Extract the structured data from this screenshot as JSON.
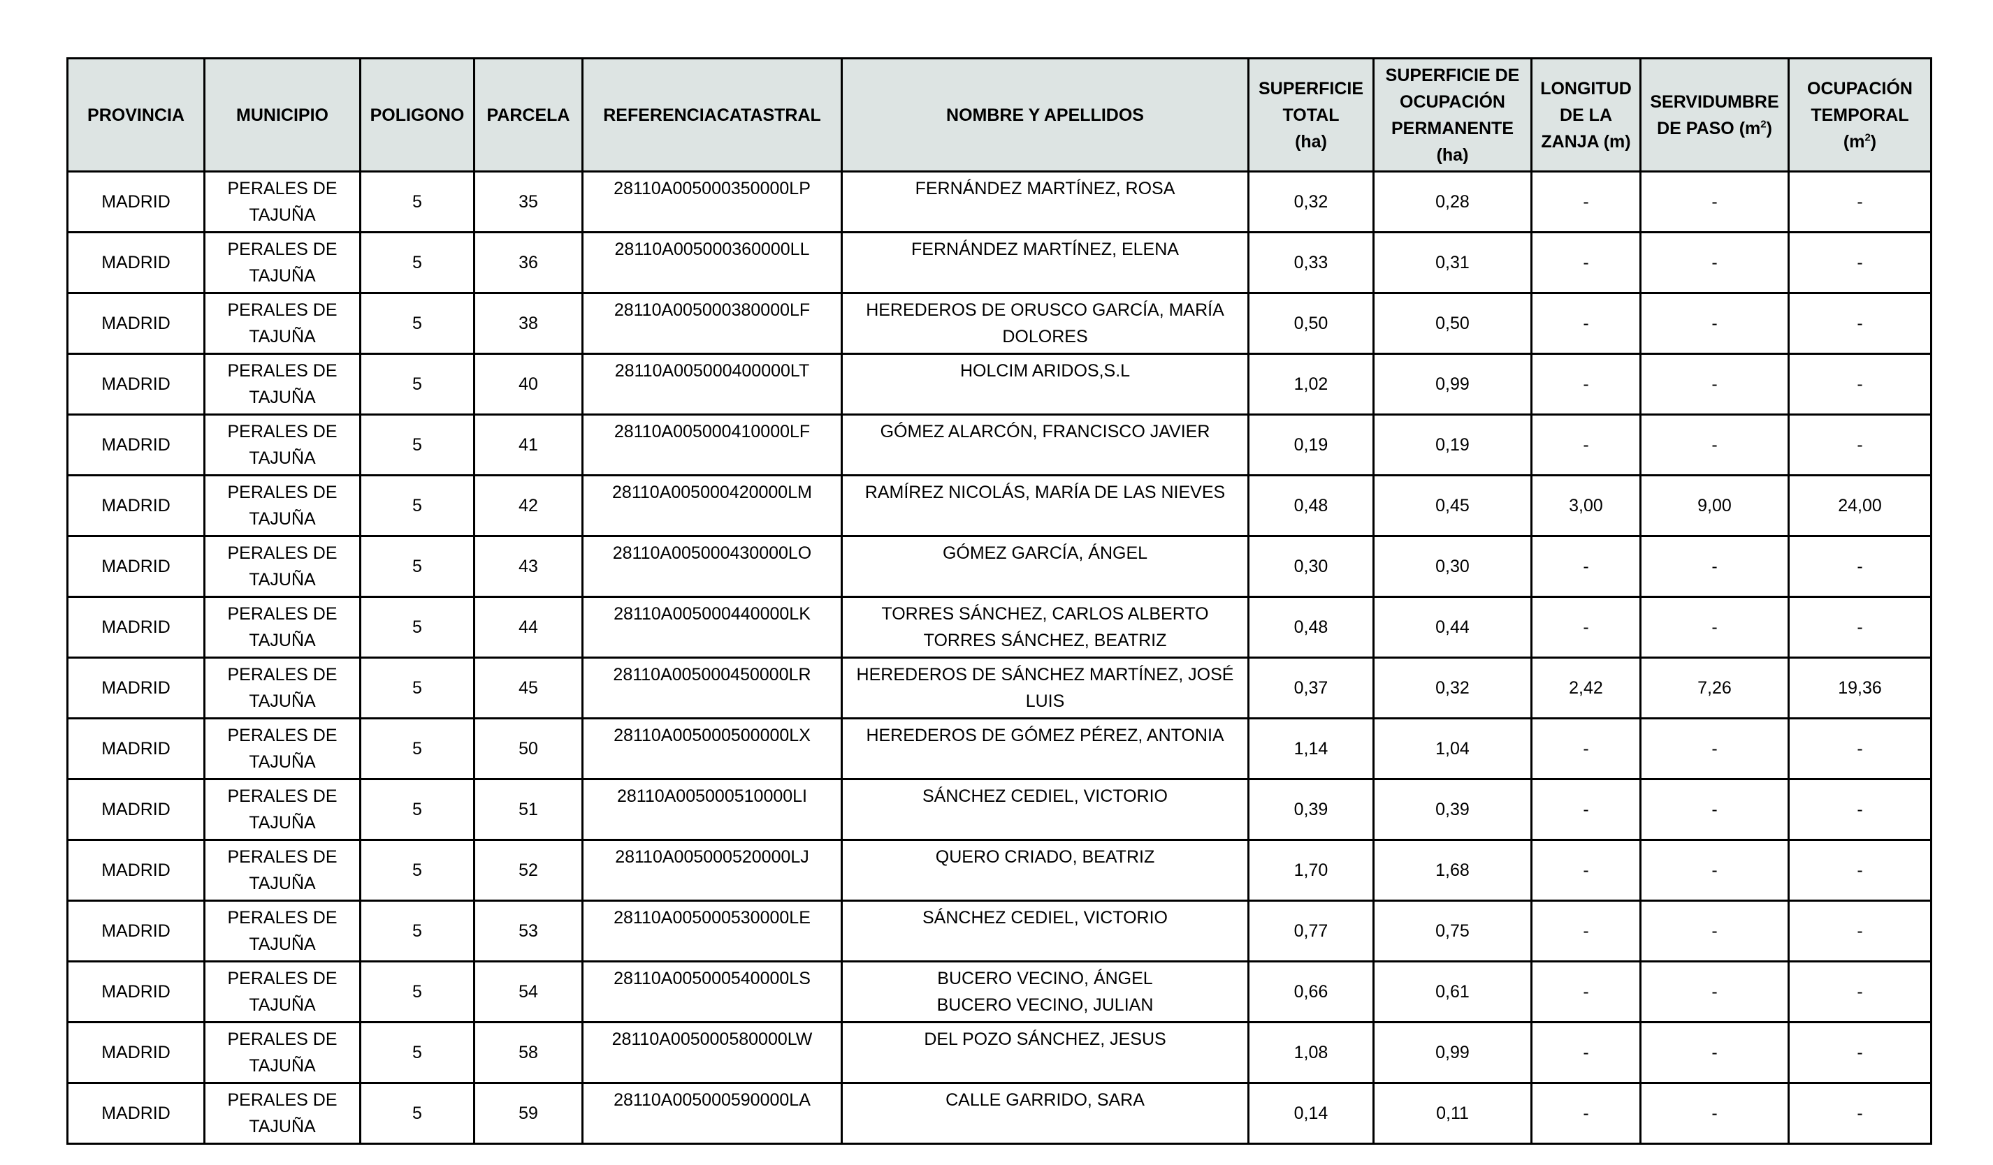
{
  "headers": [
    {
      "label": "PROVINCIA"
    },
    {
      "label": "MUNICIPIO"
    },
    {
      "label": "POLIGONO"
    },
    {
      "label": "PARCELA"
    },
    {
      "label": "REFERENCIACATASTRAL"
    },
    {
      "label": "NOMBRE Y APELLIDOS"
    },
    {
      "label": "SUPERFICIE\nTOTAL\n(ha)"
    },
    {
      "label": "SUPERFICIE DE\nOCUPACIÓN\nPERMANENTE\n(ha)"
    },
    {
      "label": "LONGITUD\nDE LA\nZANJA (m)"
    },
    {
      "label": "SERVIDUMBRE\nDE PASO (m",
      "sup": "2",
      "after": ")"
    },
    {
      "label": "OCUPACIÓN\nTEMPORAL\n(m",
      "sup": "2",
      "after": ")"
    }
  ],
  "rows": [
    [
      "MADRID",
      "PERALES DE TAJUÑA",
      "5",
      "35",
      "28110A005000350000LP",
      "FERNÁNDEZ MARTÍNEZ, ROSA",
      "0,32",
      "0,28",
      "-",
      "-",
      "-"
    ],
    [
      "MADRID",
      "PERALES DE TAJUÑA",
      "5",
      "36",
      "28110A005000360000LL",
      "FERNÁNDEZ MARTÍNEZ, ELENA",
      "0,33",
      "0,31",
      "-",
      "-",
      "-"
    ],
    [
      "MADRID",
      "PERALES DE TAJUÑA",
      "5",
      "38",
      "28110A005000380000LF",
      "HEREDEROS DE ORUSCO GARCÍA, MARÍA DOLORES",
      "0,50",
      "0,50",
      "-",
      "-",
      "-"
    ],
    [
      "MADRID",
      "PERALES DE TAJUÑA",
      "5",
      "40",
      "28110A005000400000LT",
      "HOLCIM ARIDOS,S.L",
      "1,02",
      "0,99",
      "-",
      "-",
      "-"
    ],
    [
      "MADRID",
      "PERALES DE TAJUÑA",
      "5",
      "41",
      "28110A005000410000LF",
      "GÓMEZ ALARCÓN, FRANCISCO JAVIER",
      "0,19",
      "0,19",
      "-",
      "-",
      "-"
    ],
    [
      "MADRID",
      "PERALES DE TAJUÑA",
      "5",
      "42",
      "28110A005000420000LM",
      "RAMÍREZ NICOLÁS, MARÍA DE LAS NIEVES",
      "0,48",
      "0,45",
      "3,00",
      "9,00",
      "24,00"
    ],
    [
      "MADRID",
      "PERALES DE TAJUÑA",
      "5",
      "43",
      "28110A005000430000LO",
      "GÓMEZ GARCÍA, ÁNGEL",
      "0,30",
      "0,30",
      "-",
      "-",
      "-"
    ],
    [
      "MADRID",
      "PERALES DE TAJUÑA",
      "5",
      "44",
      "28110A005000440000LK",
      "TORRES SÁNCHEZ, CARLOS ALBERTO\nTORRES SÁNCHEZ, BEATRIZ",
      "0,48",
      "0,44",
      "-",
      "-",
      "-"
    ],
    [
      "MADRID",
      "PERALES DE TAJUÑA",
      "5",
      "45",
      "28110A005000450000LR",
      "HEREDEROS DE SÁNCHEZ MARTÍNEZ, JOSÉ LUIS",
      "0,37",
      "0,32",
      "2,42",
      "7,26",
      "19,36"
    ],
    [
      "MADRID",
      "PERALES DE TAJUÑA",
      "5",
      "50",
      "28110A005000500000LX",
      "HEREDEROS DE GÓMEZ PÉREZ, ANTONIA",
      "1,14",
      "1,04",
      "-",
      "-",
      "-"
    ],
    [
      "MADRID",
      "PERALES DE TAJUÑA",
      "5",
      "51",
      "28110A005000510000LI",
      "SÁNCHEZ CEDIEL, VICTORIO",
      "0,39",
      "0,39",
      "-",
      "-",
      "-"
    ],
    [
      "MADRID",
      "PERALES DE TAJUÑA",
      "5",
      "52",
      "28110A005000520000LJ",
      "QUERO CRIADO, BEATRIZ",
      "1,70",
      "1,68",
      "-",
      "-",
      "-"
    ],
    [
      "MADRID",
      "PERALES DE TAJUÑA",
      "5",
      "53",
      "28110A005000530000LE",
      "SÁNCHEZ CEDIEL, VICTORIO",
      "0,77",
      "0,75",
      "-",
      "-",
      "-"
    ],
    [
      "MADRID",
      "PERALES DE TAJUÑA",
      "5",
      "54",
      "28110A005000540000LS",
      "BUCERO VECINO, ÁNGEL\nBUCERO VECINO, JULIAN",
      "0,66",
      "0,61",
      "-",
      "-",
      "-"
    ],
    [
      "MADRID",
      "PERALES DE TAJUÑA",
      "5",
      "58",
      "28110A005000580000LW",
      "DEL POZO SÁNCHEZ, JESUS",
      "1,08",
      "0,99",
      "-",
      "-",
      "-"
    ],
    [
      "MADRID",
      "PERALES DE TAJUÑA",
      "5",
      "59",
      "28110A005000590000LA",
      "CALLE GARRIDO, SARA",
      "0,14",
      "0,11",
      "-",
      "-",
      "-"
    ]
  ],
  "colors": {
    "header_bg": "#dde4e3",
    "border": "#000000"
  }
}
